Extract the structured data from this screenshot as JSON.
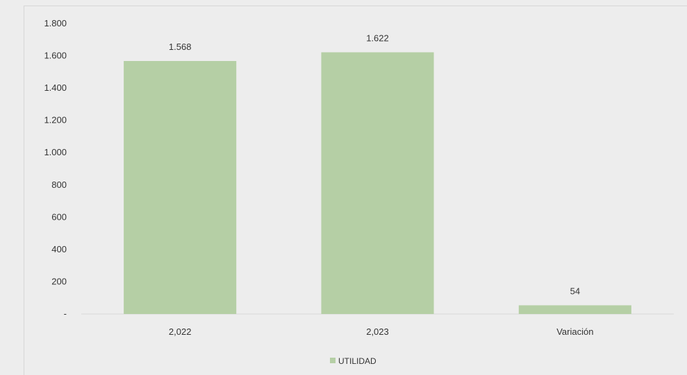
{
  "chart_data": {
    "type": "bar",
    "categories": [
      "2,022",
      "2,023",
      "Variación"
    ],
    "series": [
      {
        "name": "UTILIDAD",
        "values": [
          1568,
          1622,
          54
        ],
        "color": "#b5cfa5"
      }
    ],
    "data_labels": [
      "1.568",
      "1.622",
      "54"
    ],
    "yticks": [
      {
        "value": 0,
        "label": "-"
      },
      {
        "value": 200,
        "label": "200"
      },
      {
        "value": 400,
        "label": "400"
      },
      {
        "value": 600,
        "label": "600"
      },
      {
        "value": 800,
        "label": "800"
      },
      {
        "value": 1000,
        "label": "1.000"
      },
      {
        "value": 1200,
        "label": "1.200"
      },
      {
        "value": 1400,
        "label": "1.400"
      },
      {
        "value": 1600,
        "label": "1.600"
      },
      {
        "value": 1800,
        "label": "1.800"
      }
    ],
    "ylim": [
      0,
      1800
    ],
    "grid": false,
    "legend": {
      "position": "bottom",
      "label": "UTILIDAD"
    },
    "axis_color": "#d9d9d9"
  }
}
